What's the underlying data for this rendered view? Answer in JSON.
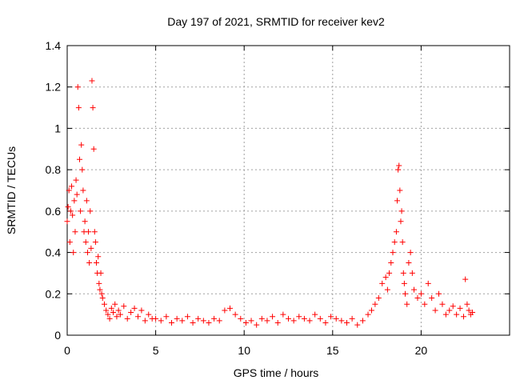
{
  "chart_data": {
    "type": "scatter",
    "title": "Day 197 of 2021, SRMTID for receiver kev2",
    "xlabel": "GPS time / hours",
    "ylabel": "SRMTID / TECUs",
    "xlim": [
      0,
      25
    ],
    "ylim": [
      0,
      1.4
    ],
    "xticks": [
      0,
      5,
      10,
      15,
      20
    ],
    "yticks": [
      0,
      0.2,
      0.4,
      0.6,
      0.8,
      1,
      1.2,
      1.4
    ],
    "ytick_labels": [
      "0",
      "0.2",
      "0.4",
      "0.6",
      "0.8",
      "1",
      "1.2",
      "1.4"
    ],
    "grid": true,
    "marker": "+",
    "color": "#ff0000",
    "series": [
      {
        "name": "kev2",
        "x": [
          0.0,
          0.05,
          0.1,
          0.15,
          0.2,
          0.25,
          0.3,
          0.35,
          0.4,
          0.45,
          0.5,
          0.55,
          0.6,
          0.65,
          0.7,
          0.75,
          0.8,
          0.85,
          0.9,
          0.95,
          1.0,
          1.05,
          1.1,
          1.15,
          1.2,
          1.25,
          1.3,
          1.35,
          1.4,
          1.45,
          1.5,
          1.55,
          1.6,
          1.65,
          1.7,
          1.75,
          1.8,
          1.85,
          1.9,
          1.95,
          2.0,
          2.1,
          2.2,
          2.3,
          2.4,
          2.5,
          2.6,
          2.7,
          2.8,
          2.9,
          3.0,
          3.2,
          3.4,
          3.6,
          3.8,
          4.0,
          4.2,
          4.4,
          4.6,
          4.8,
          5.0,
          5.3,
          5.6,
          5.9,
          6.2,
          6.5,
          6.8,
          7.1,
          7.4,
          7.7,
          8.0,
          8.3,
          8.6,
          8.9,
          9.2,
          9.5,
          9.8,
          10.1,
          10.4,
          10.7,
          11.0,
          11.3,
          11.6,
          11.9,
          12.2,
          12.5,
          12.8,
          13.1,
          13.4,
          13.7,
          14.0,
          14.3,
          14.6,
          14.9,
          15.2,
          15.5,
          15.8,
          16.1,
          16.4,
          16.7,
          17.0,
          17.2,
          17.4,
          17.6,
          17.8,
          18.0,
          18.1,
          18.2,
          18.3,
          18.4,
          18.5,
          18.6,
          18.65,
          18.7,
          18.75,
          18.8,
          18.85,
          18.9,
          18.95,
          19.0,
          19.05,
          19.1,
          19.2,
          19.3,
          19.4,
          19.5,
          19.6,
          19.8,
          20.0,
          20.2,
          20.4,
          20.6,
          20.8,
          21.0,
          21.2,
          21.4,
          21.6,
          21.8,
          22.0,
          22.2,
          22.4,
          22.5,
          22.6,
          22.7,
          22.8,
          22.9
        ],
        "y": [
          0.55,
          0.62,
          0.7,
          0.45,
          0.6,
          0.72,
          0.58,
          0.4,
          0.65,
          0.5,
          0.75,
          0.68,
          1.2,
          1.1,
          0.85,
          0.6,
          0.92,
          0.8,
          0.7,
          0.5,
          0.55,
          0.45,
          0.65,
          0.4,
          0.5,
          0.35,
          0.6,
          0.42,
          1.23,
          1.1,
          0.9,
          0.5,
          0.45,
          0.35,
          0.3,
          0.38,
          0.25,
          0.22,
          0.3,
          0.2,
          0.18,
          0.15,
          0.12,
          0.1,
          0.08,
          0.13,
          0.11,
          0.15,
          0.09,
          0.12,
          0.1,
          0.14,
          0.08,
          0.11,
          0.13,
          0.09,
          0.12,
          0.07,
          0.1,
          0.08,
          0.08,
          0.07,
          0.09,
          0.06,
          0.08,
          0.07,
          0.09,
          0.06,
          0.08,
          0.07,
          0.06,
          0.08,
          0.07,
          0.12,
          0.13,
          0.1,
          0.08,
          0.06,
          0.07,
          0.05,
          0.08,
          0.07,
          0.09,
          0.06,
          0.1,
          0.08,
          0.07,
          0.09,
          0.08,
          0.07,
          0.1,
          0.08,
          0.06,
          0.09,
          0.08,
          0.07,
          0.06,
          0.08,
          0.05,
          0.07,
          0.1,
          0.12,
          0.15,
          0.18,
          0.25,
          0.28,
          0.22,
          0.3,
          0.35,
          0.4,
          0.45,
          0.5,
          0.65,
          0.8,
          0.82,
          0.7,
          0.55,
          0.6,
          0.45,
          0.3,
          0.25,
          0.2,
          0.15,
          0.35,
          0.4,
          0.3,
          0.22,
          0.18,
          0.2,
          0.15,
          0.25,
          0.18,
          0.12,
          0.2,
          0.15,
          0.1,
          0.12,
          0.14,
          0.1,
          0.13,
          0.09,
          0.27,
          0.15,
          0.12,
          0.1,
          0.11
        ]
      }
    ]
  }
}
